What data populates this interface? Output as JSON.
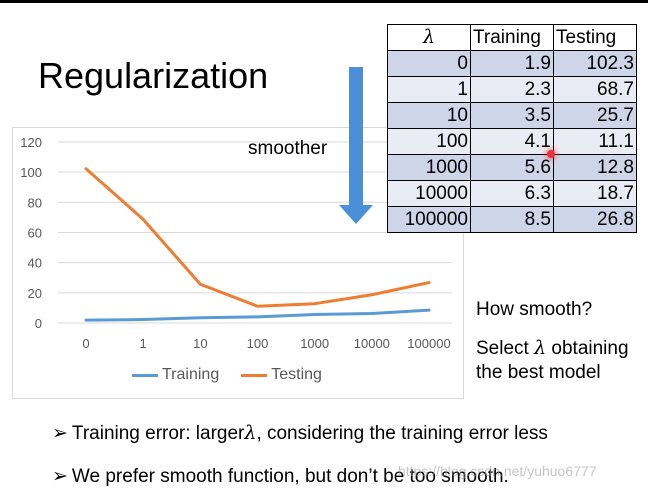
{
  "slide": {
    "title": "Regularization",
    "arrow_label": "smoother",
    "side_question": "How smooth?",
    "side_answer_prefix": "Select ",
    "side_answer_symbol": "λ",
    "side_answer_suffix": " obtaining",
    "side_answer_line2": "the best model",
    "bullet_glyph": "➢",
    "bullet1_prefix": "Training error: larger",
    "bullet1_symbol": "λ",
    "bullet1_suffix": ", considering the training error less",
    "bullet2": "We prefer smooth function, but don’t be too smooth.",
    "watermark": "https://blog.csdn.net/yuhuo6777"
  },
  "table": {
    "headers": [
      "λ",
      "Training",
      "Testing"
    ],
    "rows": [
      [
        "0",
        "1.9",
        "102.3"
      ],
      [
        "1",
        "2.3",
        "68.7"
      ],
      [
        "10",
        "3.5",
        "25.7"
      ],
      [
        "100",
        "4.1",
        "11.1"
      ],
      [
        "1000",
        "5.6",
        "12.8"
      ],
      [
        "10000",
        "6.3",
        "18.7"
      ],
      [
        "100000",
        "8.5",
        "26.8"
      ]
    ]
  },
  "colors": {
    "training": "#5b9bd5",
    "testing": "#ed7d31",
    "arrow": "#4a90d9",
    "gridline": "#d9d9d9",
    "axis_text": "#595959"
  },
  "chart_data": {
    "type": "line",
    "categories": [
      "0",
      "1",
      "10",
      "100",
      "1000",
      "10000",
      "100000"
    ],
    "series": [
      {
        "name": "Training",
        "values": [
          1.9,
          2.3,
          3.5,
          4.1,
          5.6,
          6.3,
          8.5
        ]
      },
      {
        "name": "Testing",
        "values": [
          102.3,
          68.7,
          25.7,
          11.1,
          12.8,
          18.7,
          26.8
        ]
      }
    ],
    "yticks": [
      "0",
      "20",
      "40",
      "60",
      "80",
      "100",
      "120"
    ],
    "ylim": [
      0,
      120
    ],
    "grid": true,
    "legend": "bottom"
  }
}
